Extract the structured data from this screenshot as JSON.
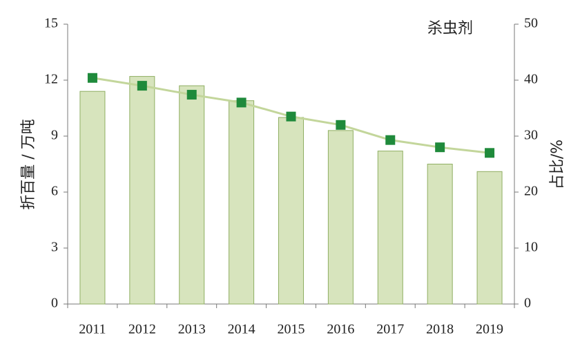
{
  "chart_data": {
    "type": "bar-line",
    "title": "杀虫剂",
    "y_label": "折百量 / 万吨",
    "y2_label": "占比/%",
    "categories": [
      "2011",
      "2012",
      "2013",
      "2014",
      "2015",
      "2016",
      "2017",
      "2018",
      "2019"
    ],
    "series": [
      {
        "type": "bar",
        "color": "#d7e4bd",
        "values": [
          11.4,
          12.2,
          11.7,
          10.9,
          10.0,
          9.3,
          8.2,
          7.5,
          7.1
        ]
      },
      {
        "type": "line",
        "axis": "y2",
        "color": "#c3d69b",
        "marker_color": "#1f8a3b",
        "values": [
          40.4,
          39.0,
          37.4,
          36.0,
          33.5,
          32.0,
          29.3,
          28.0,
          27.0
        ]
      }
    ],
    "ylim": [
      0,
      15
    ],
    "yticks": [
      0,
      3,
      6,
      9,
      12,
      15
    ],
    "y2lim": [
      0,
      50
    ],
    "y2ticks": [
      0,
      10,
      20,
      30,
      40,
      50
    ]
  }
}
